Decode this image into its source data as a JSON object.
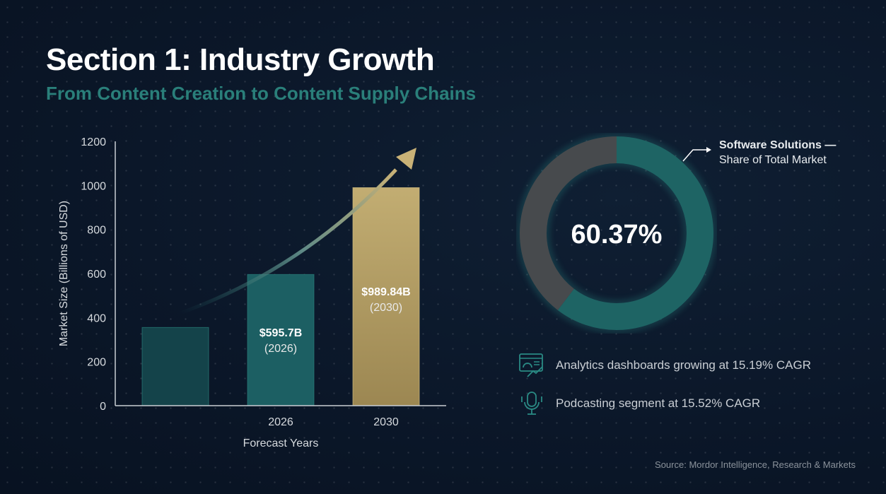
{
  "header": {
    "title": "Section 1: Industry Growth",
    "subtitle": "From Content Creation to Content Supply Chains"
  },
  "chart_data": [
    {
      "type": "bar",
      "categories": [
        "",
        "2026",
        "2030"
      ],
      "values": [
        355,
        595.7,
        989.84
      ],
      "data_labels": [
        null,
        {
          "value": "$595.7B",
          "year": "(2026)"
        },
        {
          "value": "$989.84B",
          "year": "(2030)"
        }
      ],
      "xlabel": "Forecast Years",
      "ylabel": "Market Size (Billions of USD)",
      "ylim": [
        0,
        1200
      ],
      "yticks": [
        0,
        200,
        400,
        600,
        800,
        1000,
        1200
      ],
      "grid": false,
      "colors": [
        "#14434a",
        "#1c5f63",
        "#b9a46a"
      ],
      "annotation": "growth-arrow"
    },
    {
      "type": "pie",
      "donut": true,
      "values": [
        60.37,
        39.63
      ],
      "center_label": "60.37%",
      "annotation": {
        "title": "Software Solutions —",
        "text": "Share of Total Market"
      },
      "colors": [
        "#1e6464",
        "#474a4d"
      ]
    }
  ],
  "stats": [
    {
      "icon": "analytics-dashboard-icon",
      "text": "Analytics dashboards growing at 15.19% CAGR"
    },
    {
      "icon": "podcast-microphone-icon",
      "text": "Podcasting segment at 15.52% CAGR"
    }
  ],
  "source": "Source: Mordor Intelligence, Research & Markets",
  "colors": {
    "accent": "#2a7f7a",
    "gold": "#b9a46a"
  }
}
